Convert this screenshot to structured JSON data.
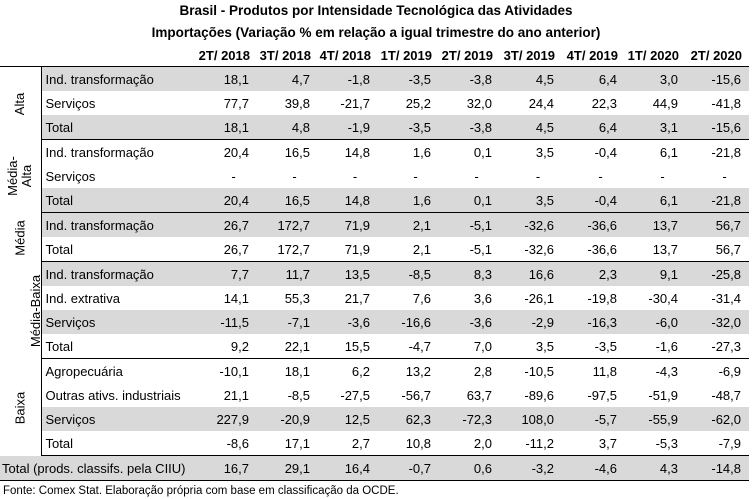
{
  "title_line1": "Brasil - Produtos por Intensidade Tecnológica das Atividades",
  "title_line2": "Importações (Variação % em relação a igual trimestre do ano anterior)",
  "columns": [
    "2T/ 2018",
    "3T/ 2018",
    "4T/ 2018",
    "1T/ 2019",
    "2T/ 2019",
    "3T/ 2019",
    "4T/ 2019",
    "1T/ 2020",
    "2T/ 2020"
  ],
  "groups": [
    {
      "name": "Alta",
      "rows": [
        {
          "label": "Ind. transformação",
          "values": [
            "18,1",
            "4,7",
            "-1,8",
            "-3,5",
            "-3,8",
            "4,5",
            "6,4",
            "3,0",
            "-15,6"
          ]
        },
        {
          "label": "Serviços",
          "values": [
            "77,7",
            "39,8",
            "-21,7",
            "25,2",
            "32,0",
            "24,4",
            "22,3",
            "44,9",
            "-41,8"
          ]
        },
        {
          "label": "Total",
          "values": [
            "18,1",
            "4,8",
            "-1,9",
            "-3,5",
            "-3,8",
            "4,5",
            "6,4",
            "3,1",
            "-15,6"
          ]
        }
      ]
    },
    {
      "name_line1": "Média-",
      "name_line2": "Alta",
      "rows": [
        {
          "label": "Ind. transformação",
          "values": [
            "20,4",
            "16,5",
            "14,8",
            "1,6",
            "0,1",
            "3,5",
            "-0,4",
            "6,1",
            "-21,8"
          ]
        },
        {
          "label": "Serviços",
          "values": [
            "-",
            "-",
            "-",
            "-",
            "-",
            "-",
            "-",
            "-",
            "-"
          ]
        },
        {
          "label": "Total",
          "values": [
            "20,4",
            "16,5",
            "14,8",
            "1,6",
            "0,1",
            "3,5",
            "-0,4",
            "6,1",
            "-21,8"
          ]
        }
      ]
    },
    {
      "name": "Média",
      "rows": [
        {
          "label": "Ind. transformação",
          "values": [
            "26,7",
            "172,7",
            "71,9",
            "2,1",
            "-5,1",
            "-32,6",
            "-36,6",
            "13,7",
            "56,7"
          ]
        },
        {
          "label": "Total",
          "values": [
            "26,7",
            "172,7",
            "71,9",
            "2,1",
            "-5,1",
            "-32,6",
            "-36,6",
            "13,7",
            "56,7"
          ]
        }
      ]
    },
    {
      "name": "Média-Baixa",
      "rows": [
        {
          "label": "Ind. transformação",
          "values": [
            "7,7",
            "11,7",
            "13,5",
            "-8,5",
            "8,3",
            "16,6",
            "2,3",
            "9,1",
            "-25,8"
          ]
        },
        {
          "label": "Ind. extrativa",
          "values": [
            "14,1",
            "55,3",
            "21,7",
            "7,6",
            "3,6",
            "-26,1",
            "-19,8",
            "-30,4",
            "-31,4"
          ]
        },
        {
          "label": "Serviços",
          "values": [
            "-11,5",
            "-7,1",
            "-3,6",
            "-16,6",
            "-3,6",
            "-2,9",
            "-16,3",
            "-6,0",
            "-32,0"
          ]
        },
        {
          "label": "Total",
          "values": [
            "9,2",
            "22,1",
            "15,5",
            "-4,7",
            "7,0",
            "3,5",
            "-3,5",
            "-1,6",
            "-27,3"
          ]
        }
      ]
    },
    {
      "name": "Baixa",
      "rows": [
        {
          "label": "Agropecuária",
          "values": [
            "-10,1",
            "18,1",
            "6,2",
            "13,2",
            "2,8",
            "-10,5",
            "11,8",
            "-4,3",
            "-6,9"
          ]
        },
        {
          "label": "Outras ativs. industriais",
          "values": [
            "21,1",
            "-8,5",
            "-27,5",
            "-56,7",
            "63,7",
            "-89,6",
            "-97,5",
            "-51,9",
            "-48,7"
          ]
        },
        {
          "label": "Serviços",
          "values": [
            "227,9",
            "-20,9",
            "12,5",
            "62,3",
            "-72,3",
            "108,0",
            "-5,7",
            "-55,9",
            "-62,0"
          ]
        },
        {
          "label": "Total",
          "values": [
            "-8,6",
            "17,1",
            "2,7",
            "10,8",
            "2,0",
            "-11,2",
            "3,7",
            "-5,3",
            "-7,9"
          ]
        }
      ]
    }
  ],
  "total": {
    "label": "Total (prods. classifs. pela CIIU)",
    "values": [
      "16,7",
      "29,1",
      "16,4",
      "-0,7",
      "0,6",
      "-3,2",
      "-4,6",
      "4,3",
      "-14,8"
    ]
  },
  "source": "Fonte: Comex Stat. Elaboração própria com base em classificação da OCDE."
}
